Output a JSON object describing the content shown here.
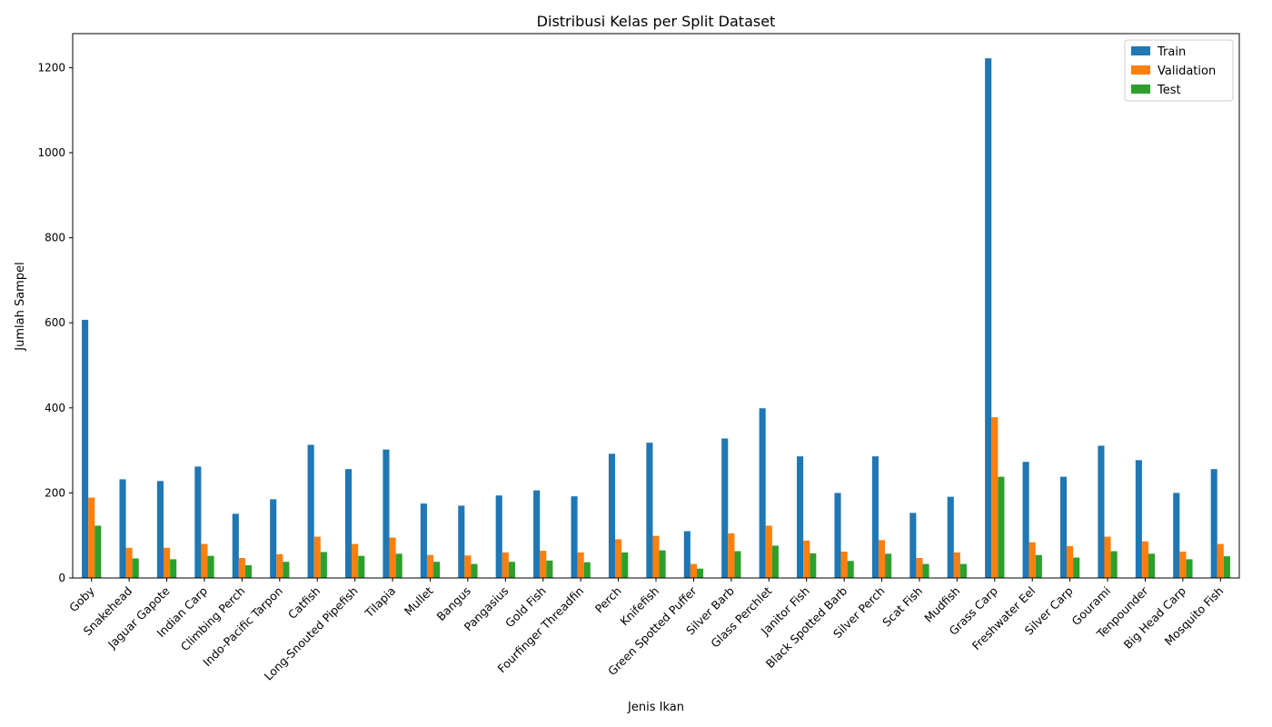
{
  "chart_data": {
    "type": "bar",
    "title": "Distribusi Kelas per Split Dataset",
    "xlabel": "Jenis Ikan",
    "ylabel": "Jumlah Sampel",
    "ylim": [
      0,
      1280
    ],
    "yticks": [
      0,
      200,
      400,
      600,
      800,
      1000,
      1200
    ],
    "grid": false,
    "legend_position": "top-right",
    "categories": [
      "Goby",
      "Snakehead",
      "Jaguar Gapote",
      "Indian Carp",
      "Climbing Perch",
      "Indo-Pacific Tarpon",
      "Catfish",
      "Long-Snouted Pipefish",
      "Tilapia",
      "Mullet",
      "Bangus",
      "Pangasius",
      "Gold Fish",
      "Fourfinger Threadfin",
      "Perch",
      "Knifefish",
      "Green Spotted Puffer",
      "Silver Barb",
      "Glass Perchlet",
      "Janitor Fish",
      "Black Spotted Barb",
      "Silver Perch",
      "Scat Fish",
      "Mudfish",
      "Grass Carp",
      "Freshwater Eel",
      "Silver Carp",
      "Gourami",
      "Tenpounder",
      "Big Head Carp",
      "Mosquito Fish"
    ],
    "series": [
      {
        "name": "Train",
        "color": "#1f77b4",
        "values": [
          607,
          232,
          228,
          262,
          151,
          185,
          313,
          256,
          302,
          175,
          170,
          194,
          206,
          192,
          292,
          318,
          110,
          328,
          399,
          286,
          200,
          286,
          153,
          191,
          1222,
          273,
          238,
          311,
          277,
          200,
          256
        ]
      },
      {
        "name": "Validation",
        "color": "#ff7f0e",
        "values": [
          189,
          71,
          71,
          80,
          47,
          56,
          97,
          80,
          95,
          54,
          53,
          60,
          64,
          60,
          91,
          99,
          33,
          105,
          123,
          88,
          62,
          89,
          47,
          60,
          378,
          84,
          75,
          97,
          86,
          62,
          80
        ]
      },
      {
        "name": "Test",
        "color": "#2ca02c",
        "values": [
          123,
          46,
          44,
          52,
          30,
          38,
          61,
          52,
          57,
          38,
          33,
          38,
          41,
          37,
          60,
          65,
          22,
          63,
          76,
          58,
          40,
          57,
          33,
          33,
          238,
          54,
          48,
          63,
          57,
          44,
          51
        ]
      }
    ]
  }
}
